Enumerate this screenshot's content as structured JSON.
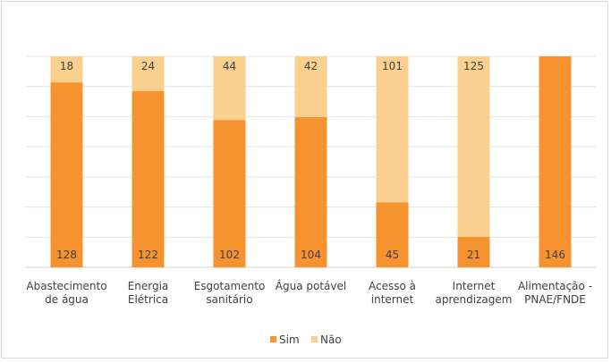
{
  "chart_data": {
    "type": "bar",
    "stacked": true,
    "normalized_to_100_percent": true,
    "categories": [
      [
        "Abastecimento",
        "de água"
      ],
      [
        "Energia",
        "Elétrica"
      ],
      [
        "Esgotamento",
        "sanitário"
      ],
      [
        "Água potável"
      ],
      [
        "Acesso à",
        "internet"
      ],
      [
        "Internet",
        "aprendizagem"
      ],
      [
        "Alimentação -",
        "PNAE/FNDE"
      ]
    ],
    "series": [
      {
        "name": "Sim",
        "color": "#f7932f",
        "values": [
          128,
          122,
          102,
          104,
          45,
          21,
          146
        ]
      },
      {
        "name": "Não",
        "color": "#fbd08f",
        "values": [
          18,
          24,
          44,
          42,
          101,
          125,
          0
        ]
      }
    ],
    "ylim": [
      0,
      146
    ],
    "grid": true,
    "legend": "bottom",
    "data_labels": true
  }
}
